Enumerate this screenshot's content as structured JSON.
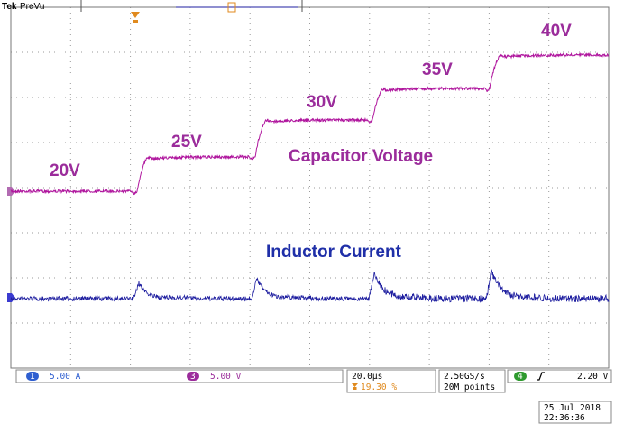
{
  "header": {
    "brand": "Tek",
    "mode": "PreVu"
  },
  "annotations": {
    "levels": [
      "20V",
      "25V",
      "30V",
      "35V",
      "40V"
    ],
    "voltage_label": "Capacitor Voltage",
    "current_label": "Inductor Current"
  },
  "status": {
    "ch1": {
      "number": "1",
      "scale": "5.00 A"
    },
    "ch3": {
      "number": "3",
      "scale": "5.00 V"
    },
    "timebase": "20.0µs",
    "trigger_position": "19.30 %",
    "sample_rate": "2.50GS/s",
    "record_length": "20M points",
    "trigger": {
      "channel": "4",
      "level": "2.20 V"
    },
    "date": "25 Jul 2018",
    "time": "22:36:36"
  }
}
